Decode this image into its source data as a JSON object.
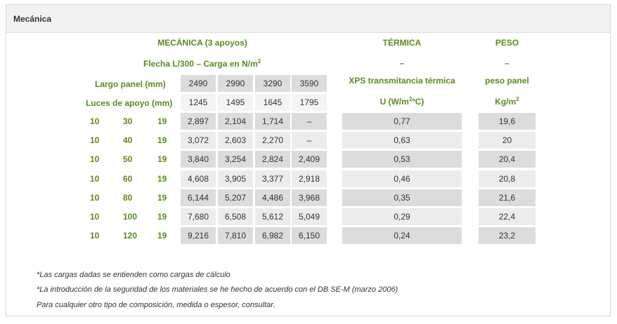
{
  "section_title": "Mecánica",
  "groups": {
    "mecanica": "MECÁNICA (3 apoyos)",
    "termica": "TÉRMICA",
    "peso": "PESO"
  },
  "subheaders": {
    "flecha": "Flecha L/300 – Carga en N/m",
    "flecha_sup": "2",
    "termica_dash": "–",
    "peso_dash": "–",
    "largo_label": "Largo panel (mm)",
    "termica_label": "XPS transmitancia térmica",
    "peso_label": "peso panel",
    "luces_label": "Luces de apoyo (mm)",
    "termica_unit": "U (W/m",
    "termica_unit_sup": "2",
    "termica_unit_end": "ºC)",
    "peso_unit": "Kg/m",
    "peso_unit_sup": "2"
  },
  "largo_values": [
    "2490",
    "2990",
    "3290",
    "3590"
  ],
  "luces_values": [
    "1245",
    "1495",
    "1645",
    "1795"
  ],
  "rows": [
    {
      "a": "10",
      "b": "30",
      "c": "19",
      "v": [
        "2,897",
        "2,104",
        "1,714",
        "–"
      ],
      "u": "0,77",
      "p": "19,6"
    },
    {
      "a": "10",
      "b": "40",
      "c": "19",
      "v": [
        "3,072",
        "2,603",
        "2,270",
        "–"
      ],
      "u": "0,63",
      "p": "20"
    },
    {
      "a": "10",
      "b": "50",
      "c": "19",
      "v": [
        "3,840",
        "3,254",
        "2,824",
        "2,409"
      ],
      "u": "0,53",
      "p": "20,4"
    },
    {
      "a": "10",
      "b": "60",
      "c": "19",
      "v": [
        "4,608",
        "3,905",
        "3,377",
        "2,918"
      ],
      "u": "0,46",
      "p": "20,8"
    },
    {
      "a": "10",
      "b": "80",
      "c": "19",
      "v": [
        "6,144",
        "5,207",
        "4,486",
        "3,968"
      ],
      "u": "0,35",
      "p": "21,6"
    },
    {
      "a": "10",
      "b": "100",
      "c": "19",
      "v": [
        "7,680",
        "6,508",
        "5,612",
        "5,049"
      ],
      "u": "0,29",
      "p": "22,4"
    },
    {
      "a": "10",
      "b": "120",
      "c": "19",
      "v": [
        "9,216",
        "7,810",
        "6,982",
        "6,150"
      ],
      "u": "0,24",
      "p": "23,2"
    }
  ],
  "notes": [
    "*Las cargas dadas se entienden como cargas de cálculo",
    "*La introducción de la seguridad de los materiales se he hecho de acuerdo con el DB SE-M (marzo 2006)",
    "Para cualquier otro tipo de composición, medida o espesor, consultar."
  ],
  "colors": {
    "accent": "#5b8a1e",
    "cell_dark": "#dcdcdc",
    "cell_light": "#ececec"
  }
}
